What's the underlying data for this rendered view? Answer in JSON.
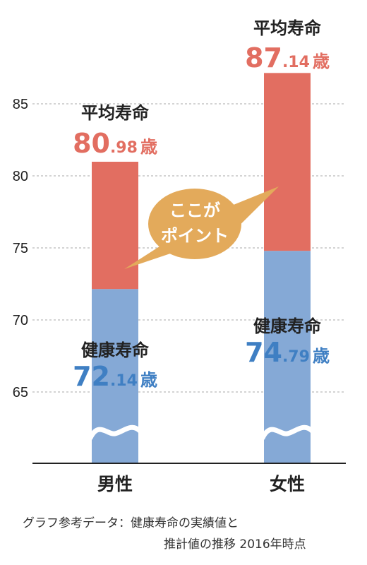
{
  "chart_data": {
    "type": "bar",
    "stacked": true,
    "categories": [
      "男性",
      "女性"
    ],
    "yticks": [
      65,
      70,
      75,
      80,
      85
    ],
    "grid": true,
    "series": [
      {
        "key": "healthy",
        "color": "#85a9d6",
        "values": [
          72.14,
          74.79
        ]
      },
      {
        "key": "average",
        "color": "#e26e61",
        "values": [
          80.98,
          87.14
        ]
      }
    ],
    "annotations": {
      "male": {
        "average": {
          "label": "平均寿命",
          "int": "80",
          "dec": ".98",
          "unit": "歳"
        },
        "healthy": {
          "label": "健康寿命",
          "int": "72",
          "dec": ".14",
          "unit": "歳"
        }
      },
      "female": {
        "average": {
          "label": "平均寿命",
          "int": "87",
          "dec": ".14",
          "unit": "歳"
        },
        "healthy": {
          "label": "健康寿命",
          "int": "74",
          "dec": ".79",
          "unit": "歳"
        }
      }
    },
    "callout": {
      "line1": "ここが",
      "line2": "ポイント",
      "color": "#e3aa5b"
    },
    "colors": {
      "average_text": "#e26e61",
      "healthy_text": "#3f7fc3"
    }
  },
  "source": {
    "line1": "グラフ参考データ：健康寿命の実績値と",
    "line2": "推計値の推移 2016年時点"
  }
}
